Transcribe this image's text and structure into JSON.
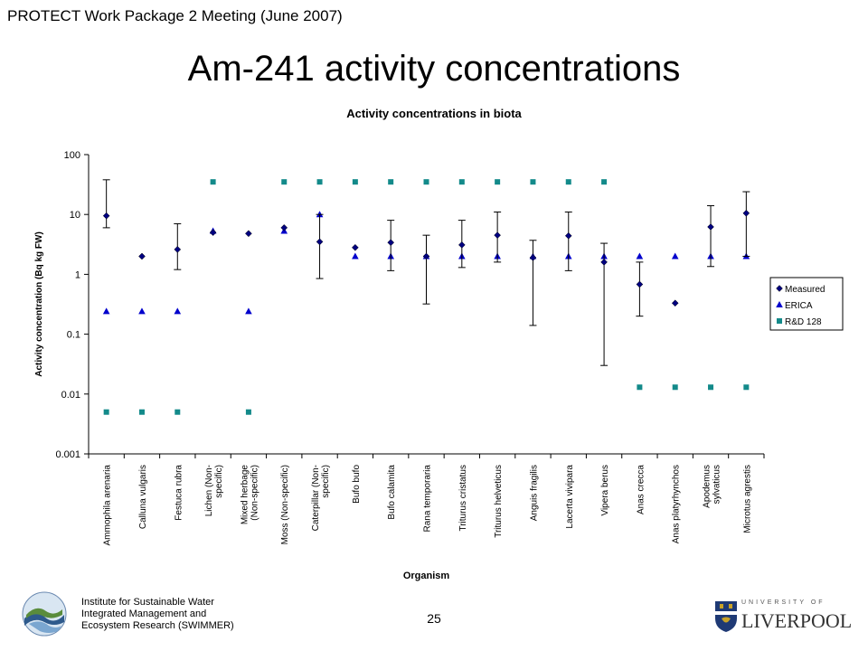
{
  "header": {
    "title": "PROTECT Work Package 2 Meeting (June 2007)"
  },
  "slide": {
    "title": "Am-241 activity concentrations",
    "page_number": "25"
  },
  "footer": {
    "institute_lines": [
      "Institute for Sustainable Water",
      "Integrated Management and",
      "Ecosystem Research (SWIMMER)"
    ],
    "university_small": "UNIVERSITY OF",
    "university_name": "LIVERPOOL"
  },
  "chart_data": {
    "type": "scatter",
    "title": "Activity concentrations in biota",
    "xlabel": "Organism",
    "ylabel": "Activity concentration (Bq kg FW)",
    "yscale": "log",
    "ylim": [
      0.001,
      100
    ],
    "yticks": [
      "0.001",
      "0.01",
      "0.1",
      "1",
      "10",
      "100"
    ],
    "legend_position": "right",
    "categories": [
      "Ammophila arenaria",
      "Calluna vulgaris",
      "Festuca rubra",
      "Lichen (Non-specific)",
      "Mixed herbage (Non-specific)",
      "Moss (Non-specific)",
      "Caterpillar (Non-specific)",
      "Bufo bufo",
      "Bufo calamita",
      "Rana temporaria",
      "Triturus cristatus",
      "Triturus helveticus",
      "Anguis fragilis",
      "Lacerta vivipara",
      "Vipera berus",
      "Anas crecca",
      "Anas platyrhynchos",
      "Apodemus sylvaticus",
      "Microtus agrestis"
    ],
    "category_labels": [
      [
        "Ammophila arenaria"
      ],
      [
        "Calluna vulgaris"
      ],
      [
        "Festuca rubra"
      ],
      [
        "Lichen (Non-",
        "specific)"
      ],
      [
        "Mixed herbage",
        "(Non-specific)"
      ],
      [
        "Moss (Non-specific)"
      ],
      [
        "Caterpillar (Non-",
        "specific)"
      ],
      [
        "Bufo bufo"
      ],
      [
        "Bufo calamita"
      ],
      [
        "Rana temporaria"
      ],
      [
        "Triturus cristatus"
      ],
      [
        "Triturus helveticus"
      ],
      [
        "Anguis fragilis"
      ],
      [
        "Lacerta vivipara"
      ],
      [
        "Vipera berus"
      ],
      [
        "Anas crecca"
      ],
      [
        "Anas platyrhynchos"
      ],
      [
        "Apodemus",
        "sylvaticus"
      ],
      [
        "Microtus agrestis"
      ]
    ],
    "series": [
      {
        "name": "Measured",
        "marker": "diamond",
        "color": "#000080",
        "values": [
          9.5,
          2.0,
          2.6,
          5.0,
          4.8,
          6.0,
          3.5,
          2.8,
          3.4,
          2.0,
          3.1,
          4.5,
          1.9,
          4.4,
          1.6,
          0.68,
          0.33,
          6.2,
          10.5
        ],
        "error_low": [
          6.0,
          null,
          1.2,
          null,
          null,
          null,
          0.85,
          null,
          1.15,
          0.32,
          1.3,
          1.6,
          0.14,
          1.15,
          0.03,
          0.2,
          null,
          1.35,
          2.0
        ],
        "error_high": [
          38,
          null,
          7,
          null,
          null,
          null,
          10,
          null,
          8,
          4.5,
          8,
          11,
          3.7,
          11,
          3.3,
          1.6,
          null,
          14,
          24
        ]
      },
      {
        "name": "ERICA",
        "marker": "triangle",
        "color": "#0000cc",
        "values": [
          0.24,
          0.24,
          0.24,
          5.3,
          0.24,
          5.3,
          10.0,
          2.0,
          2.0,
          2.0,
          2.0,
          2.0,
          2.0,
          2.0,
          2.0,
          2.0,
          2.0,
          2.0,
          2.0
        ]
      },
      {
        "name": "R&D 128",
        "marker": "square",
        "color": "#138a8a",
        "values": [
          0.005,
          0.005,
          0.005,
          35,
          0.005,
          35,
          35,
          35,
          35,
          35,
          35,
          35,
          35,
          35,
          35,
          0.013,
          0.013,
          0.013,
          0.013
        ]
      }
    ]
  }
}
